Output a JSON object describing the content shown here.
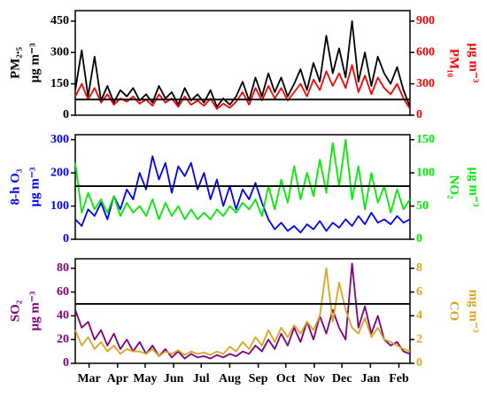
{
  "chart_data": [
    {
      "type": "line",
      "ylabel": [
        "PM₂.₅",
        "μg m⁻³"
      ],
      "y2label": [
        "PM₁₀",
        "μg m⁻³"
      ],
      "ylabel_color": "#000000",
      "y2label_color": "#ff0000",
      "xlim": [
        0,
        364
      ],
      "ylim": [
        0,
        500
      ],
      "yticks": [
        0,
        150,
        300,
        450
      ],
      "y2lim": [
        0,
        1000
      ],
      "y2ticks": [
        0,
        300,
        600,
        900
      ],
      "reference_line": 75,
      "x": [
        0,
        7,
        14,
        21,
        28,
        35,
        42,
        49,
        56,
        63,
        70,
        77,
        84,
        91,
        98,
        105,
        112,
        119,
        126,
        133,
        140,
        147,
        154,
        161,
        168,
        175,
        182,
        189,
        196,
        203,
        210,
        217,
        224,
        231,
        238,
        245,
        252,
        259,
        266,
        273,
        280,
        287,
        294,
        301,
        308,
        315,
        322,
        329,
        336,
        343,
        350,
        357,
        364
      ],
      "series": [
        {
          "name": "PM₂.₅",
          "color": "#000000",
          "values": [
            120,
            310,
            90,
            280,
            70,
            140,
            60,
            120,
            90,
            130,
            70,
            100,
            60,
            140,
            80,
            110,
            50,
            130,
            70,
            100,
            60,
            120,
            40,
            80,
            50,
            90,
            160,
            70,
            180,
            90,
            200,
            110,
            180,
            90,
            150,
            220,
            120,
            250,
            160,
            380,
            200,
            320,
            180,
            450,
            160,
            300,
            140,
            280,
            200,
            150,
            230,
            120,
            40
          ]
        },
        {
          "name": "PM₁₀",
          "color": "#ff0000",
          "axis": "y2",
          "values": [
            180,
            300,
            150,
            260,
            120,
            200,
            100,
            160,
            130,
            180,
            110,
            150,
            90,
            200,
            120,
            160,
            80,
            180,
            100,
            140,
            90,
            160,
            60,
            110,
            70,
            130,
            220,
            100,
            260,
            140,
            280,
            160,
            260,
            140,
            220,
            300,
            180,
            340,
            240,
            420,
            280,
            400,
            260,
            480,
            220,
            380,
            200,
            360,
            260,
            200,
            300,
            160,
            60
          ]
        }
      ]
    },
    {
      "type": "line",
      "ylabel": [
        "8-h O₃",
        "μg m⁻³"
      ],
      "y2label": [
        "NO₂",
        "μg m⁻³"
      ],
      "ylabel_color": "#0000ff",
      "y2label_color": "#00ee00",
      "xlim": [
        0,
        364
      ],
      "ylim": [
        0,
        315
      ],
      "yticks": [
        0,
        100,
        200,
        300
      ],
      "y2lim": [
        0,
        157.5
      ],
      "y2ticks": [
        0,
        50,
        100,
        150
      ],
      "reference_line": 160,
      "x": [
        0,
        7,
        14,
        21,
        28,
        35,
        42,
        49,
        56,
        63,
        70,
        77,
        84,
        91,
        98,
        105,
        112,
        119,
        126,
        133,
        140,
        147,
        154,
        161,
        168,
        175,
        182,
        189,
        196,
        203,
        210,
        217,
        224,
        231,
        238,
        245,
        252,
        259,
        266,
        273,
        280,
        287,
        294,
        301,
        308,
        315,
        322,
        329,
        336,
        343,
        350,
        357,
        364
      ],
      "series": [
        {
          "name": "8-h O₃",
          "color": "#0000ff",
          "values": [
            60,
            40,
            90,
            70,
            110,
            60,
            130,
            90,
            150,
            120,
            200,
            150,
            250,
            180,
            230,
            140,
            220,
            190,
            230,
            150,
            200,
            120,
            180,
            100,
            160,
            90,
            150,
            120,
            170,
            110,
            60,
            30,
            50,
            25,
            40,
            20,
            45,
            30,
            55,
            25,
            50,
            35,
            60,
            40,
            70,
            45,
            80,
            50,
            60,
            45,
            70,
            50,
            60
          ]
        },
        {
          "name": "NO₂",
          "color": "#00ee00",
          "axis": "y2",
          "values": [
            115,
            40,
            70,
            45,
            60,
            40,
            65,
            35,
            55,
            40,
            50,
            35,
            60,
            30,
            55,
            35,
            50,
            30,
            45,
            30,
            40,
            30,
            45,
            35,
            50,
            40,
            55,
            45,
            60,
            35,
            80,
            45,
            90,
            55,
            110,
            60,
            100,
            65,
            120,
            70,
            145,
            80,
            150,
            60,
            110,
            45,
            100,
            55,
            80,
            40,
            75,
            45,
            60
          ]
        }
      ]
    },
    {
      "type": "line",
      "ylabel": [
        "SO₂",
        "μg m⁻³"
      ],
      "y2label": [
        "CO",
        "mg m⁻³"
      ],
      "ylabel_color": "#800080",
      "y2label_color": "#daa520",
      "xlim": [
        0,
        364
      ],
      "ylim": [
        0,
        88
      ],
      "yticks": [
        0,
        20,
        40,
        60,
        80
      ],
      "y2lim": [
        0,
        8.8
      ],
      "y2ticks": [
        0,
        2,
        4,
        6,
        8
      ],
      "reference_line": 50,
      "xticks": [
        {
          "value": 15,
          "label": "Mar"
        },
        {
          "value": 46,
          "label": "Apr"
        },
        {
          "value": 76,
          "label": "May"
        },
        {
          "value": 107,
          "label": "Jun"
        },
        {
          "value": 137,
          "label": "Jul"
        },
        {
          "value": 168,
          "label": "Aug"
        },
        {
          "value": 199,
          "label": "Sep"
        },
        {
          "value": 229,
          "label": "Oct"
        },
        {
          "value": 260,
          "label": "Nov"
        },
        {
          "value": 290,
          "label": "Dec"
        },
        {
          "value": 321,
          "label": "Jan"
        },
        {
          "value": 352,
          "label": "Feb"
        }
      ],
      "x": [
        0,
        7,
        14,
        21,
        28,
        35,
        42,
        49,
        56,
        63,
        70,
        77,
        84,
        91,
        98,
        105,
        112,
        119,
        126,
        133,
        140,
        147,
        154,
        161,
        168,
        175,
        182,
        189,
        196,
        203,
        210,
        217,
        224,
        231,
        238,
        245,
        252,
        259,
        266,
        273,
        280,
        287,
        294,
        301,
        308,
        315,
        322,
        329,
        336,
        343,
        350,
        357,
        364
      ],
      "series": [
        {
          "name": "SO₂",
          "color": "#800080",
          "values": [
            45,
            30,
            35,
            20,
            28,
            15,
            25,
            12,
            20,
            10,
            18,
            8,
            15,
            6,
            12,
            5,
            10,
            4,
            8,
            5,
            6,
            4,
            7,
            5,
            8,
            6,
            10,
            8,
            15,
            10,
            20,
            12,
            25,
            15,
            30,
            18,
            35,
            20,
            40,
            25,
            45,
            30,
            20,
            84,
            30,
            48,
            25,
            40,
            20,
            15,
            18,
            10,
            8
          ]
        },
        {
          "name": "CO",
          "color": "#daa520",
          "axis": "y2",
          "values": [
            2.8,
            1.5,
            2.2,
            1.2,
            1.8,
            1.0,
            1.5,
            0.8,
            1.2,
            1.0,
            1.0,
            0.8,
            1.2,
            0.6,
            1.0,
            0.8,
            1.1,
            0.7,
            1.0,
            0.8,
            0.9,
            0.7,
            1.0,
            0.8,
            1.4,
            1.0,
            1.8,
            1.2,
            2.2,
            1.5,
            2.8,
            1.8,
            3.0,
            2.2,
            3.2,
            2.5,
            3.5,
            2.8,
            4.0,
            8.0,
            3.5,
            6.8,
            4.5,
            3.0,
            2.5,
            3.8,
            2.2,
            3.0,
            2.0,
            1.8,
            1.5,
            1.2,
            1.0
          ]
        }
      ]
    }
  ]
}
